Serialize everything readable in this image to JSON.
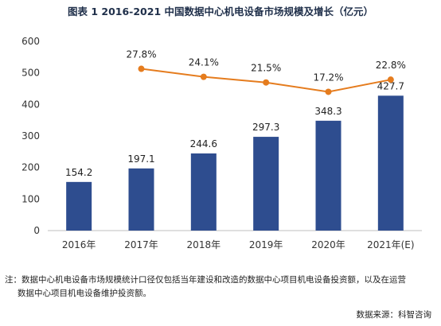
{
  "title": "图表 1    2016-2021 中国数据中心机电设备市场规模及增长（亿元）",
  "chart_data": {
    "type": "bar",
    "categories": [
      "2016年",
      "2017年",
      "2018年",
      "2019年",
      "2020年",
      "2021年(E)"
    ],
    "values": [
      154.2,
      197.1,
      244.6,
      297.3,
      348.3,
      427.7
    ],
    "value_labels": [
      "154.2",
      "197.1",
      "244.6",
      "297.3",
      "348.3",
      "427.7"
    ],
    "ylim": [
      0,
      600
    ],
    "yticks": [
      "0",
      "100",
      "200",
      "300",
      "400",
      "500",
      "600"
    ],
    "bar_color": "#2E4D8F",
    "line_series": {
      "type": "line",
      "categories": [
        "2017年",
        "2018年",
        "2019年",
        "2020年",
        "2021年(E)"
      ],
      "values": [
        27.8,
        24.1,
        21.5,
        17.2,
        22.8
      ],
      "value_labels": [
        "27.8%",
        "24.1%",
        "21.5%",
        "17.2%",
        "22.8%"
      ],
      "color": "#E57C1E"
    },
    "grid": false
  },
  "note": {
    "line1": "注：数据中心机电设备市场规模统计口径仅包括当年建设和改造的数据中心项目机电设备投资额，以及在运营",
    "line2": "数据中心项目机电设备维护投资额。"
  },
  "source": "数据来源：科智咨询"
}
